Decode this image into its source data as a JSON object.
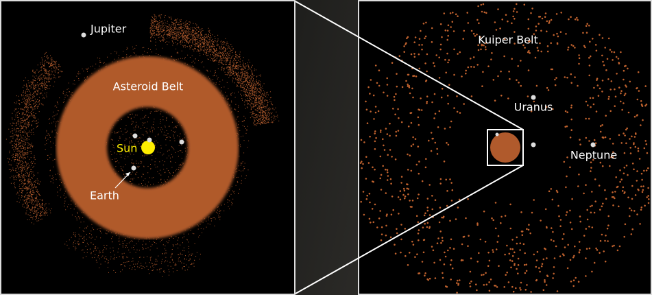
{
  "left_panel": {
    "labels": {
      "jupiter": "Jupiter",
      "asteroid_belt": "Asteroid Belt",
      "sun": "Sun",
      "earth": "Earth"
    }
  },
  "right_panel": {
    "labels": {
      "kuiper_belt": "Kuiper Belt",
      "uranus": "Uranus",
      "neptune": "Neptune"
    }
  }
}
